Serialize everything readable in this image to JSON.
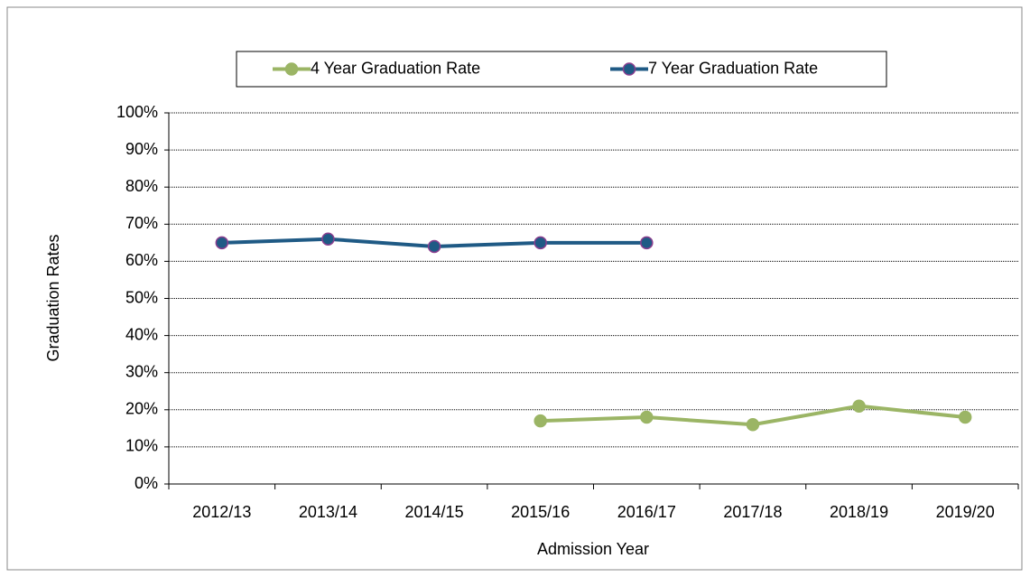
{
  "chart_data": {
    "type": "line",
    "x_label": "Admission Year",
    "y_label": "Graduation Rates",
    "categories": [
      "2012/13",
      "2013/14",
      "2014/15",
      "2015/16",
      "2016/17",
      "2017/18",
      "2018/19",
      "2019/20"
    ],
    "series": [
      {
        "name": "4 Year Graduation Rate",
        "color": "#9bb565",
        "values": [
          null,
          null,
          null,
          17,
          18,
          16,
          21,
          18
        ]
      },
      {
        "name": "7 Year Graduation Rate",
        "color": "#1f5a85",
        "values": [
          65,
          66,
          64,
          65,
          65,
          null,
          null,
          null
        ]
      }
    ],
    "ylim": [
      0,
      100
    ],
    "yticks": [
      {
        "value": 0,
        "label": "0%"
      },
      {
        "value": 10,
        "label": "10%"
      },
      {
        "value": 20,
        "label": "20%"
      },
      {
        "value": 30,
        "label": "30%"
      },
      {
        "value": 40,
        "label": "40%"
      },
      {
        "value": 50,
        "label": "50%"
      },
      {
        "value": 60,
        "label": "60%"
      },
      {
        "value": 70,
        "label": "70%"
      },
      {
        "value": 80,
        "label": "80%"
      },
      {
        "value": 90,
        "label": "90%"
      },
      {
        "value": 100,
        "label": "100%"
      }
    ],
    "grid": true,
    "legend": "top"
  }
}
